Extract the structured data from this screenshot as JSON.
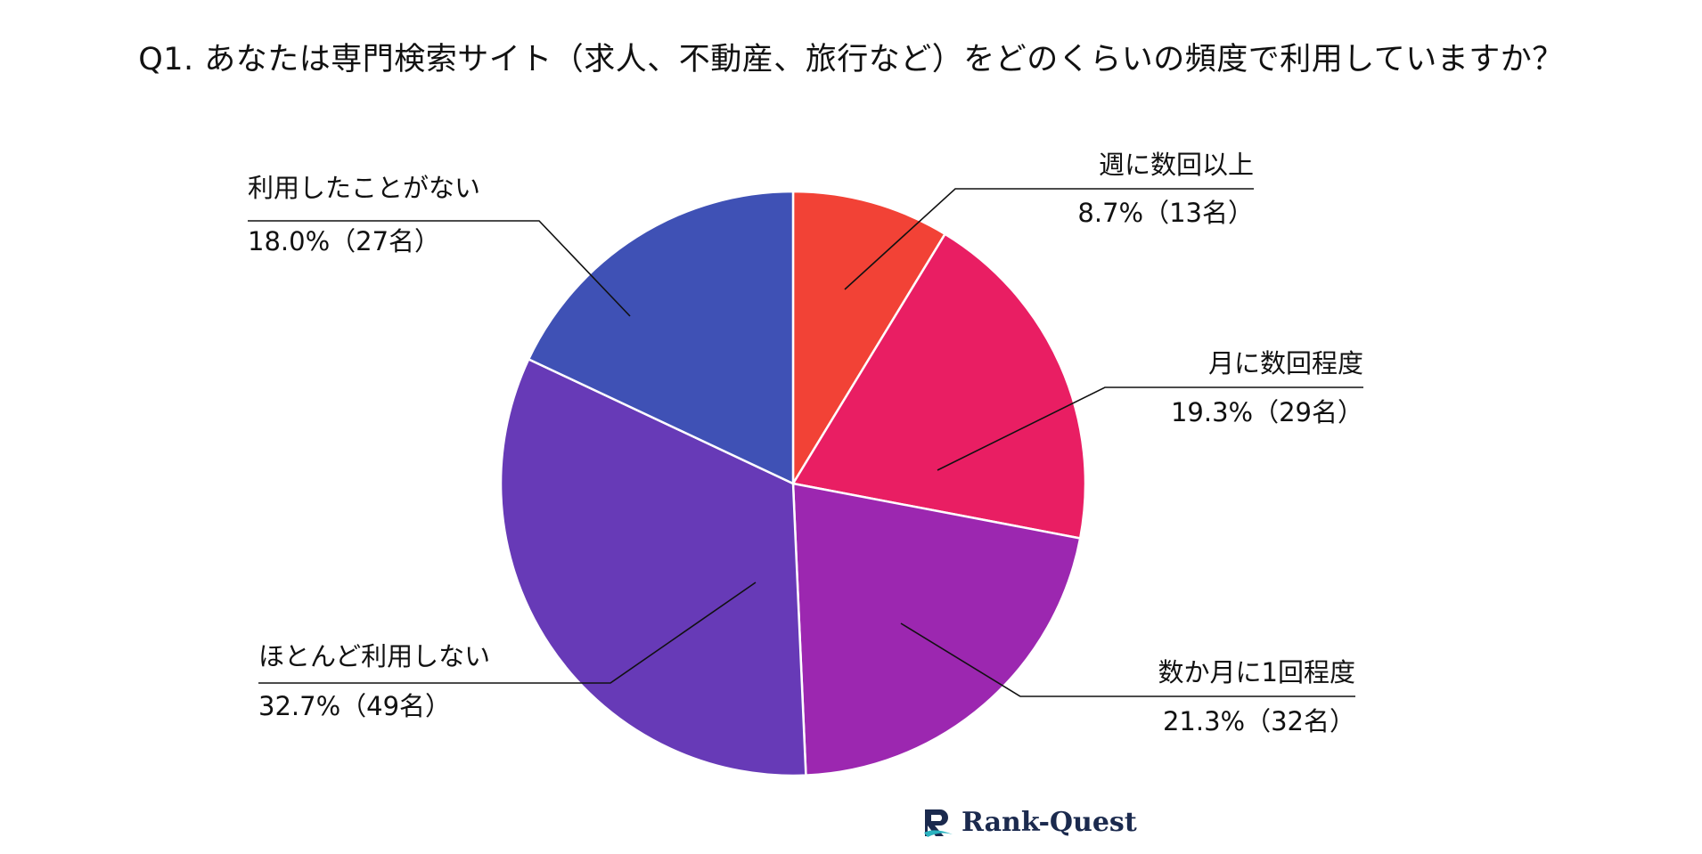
{
  "chart_data": {
    "type": "pie",
    "title": "Q1. あなたは専門検索サイト（求人、不動産、旅行など）をどのくらいの頻度で利用していますか？",
    "slices": [
      {
        "label": "週に数回以上",
        "value_text": "8.7%（13名）",
        "percent": 8.7,
        "count": 13,
        "color": "#f24236"
      },
      {
        "label": "月に数回程度",
        "value_text": "19.3%（29名）",
        "percent": 19.3,
        "count": 29,
        "color": "#e91e63"
      },
      {
        "label": "数か月に1回程度",
        "value_text": "21.3%（32名）",
        "percent": 21.3,
        "count": 32,
        "color": "#9c27b0"
      },
      {
        "label": "ほとんど利用しない",
        "value_text": "32.7%（49名）",
        "percent": 32.7,
        "count": 49,
        "color": "#673ab7"
      },
      {
        "label": "利用したことがない",
        "value_text": "18.0%（27名）",
        "percent": 18.0,
        "count": 27,
        "color": "#3f51b5"
      }
    ]
  },
  "brand": {
    "name": "Rank-Quest",
    "icon": "rank-quest-logo-icon",
    "icon_color": "#1b2a4e",
    "accent_color": "#2bb3c0"
  }
}
